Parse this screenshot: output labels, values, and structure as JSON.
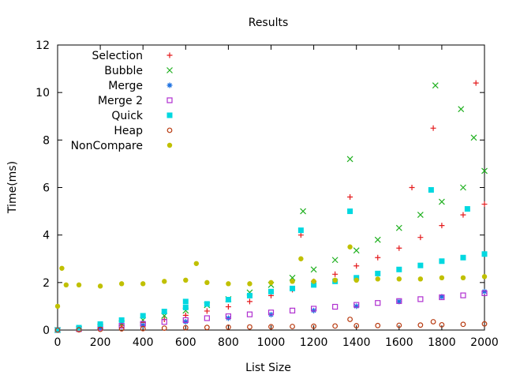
{
  "chart_data": {
    "type": "scatter",
    "title": "Results",
    "xlabel": "List Size",
    "ylabel": "Time(ms)",
    "xlim": [
      0,
      2000
    ],
    "ylim": [
      0,
      12
    ],
    "xticks": [
      0,
      200,
      400,
      600,
      800,
      1000,
      1200,
      1400,
      1600,
      1800,
      2000
    ],
    "yticks": [
      0,
      2,
      4,
      6,
      8,
      10,
      12
    ],
    "grid": false,
    "legend": "top-left",
    "series": [
      {
        "name": "Selection",
        "color": "#e41a1c",
        "marker": "plus",
        "x": [
          0,
          100,
          200,
          300,
          400,
          500,
          600,
          700,
          800,
          900,
          1000,
          1100,
          1200,
          1300,
          1400,
          1500,
          1600,
          1700,
          1800,
          1900,
          2000,
          1140,
          1370,
          1760,
          1960,
          1660
        ],
        "y": [
          0.0,
          0.03,
          0.12,
          0.2,
          0.32,
          0.45,
          0.62,
          0.8,
          0.98,
          1.2,
          1.45,
          1.7,
          2.05,
          2.35,
          2.7,
          3.05,
          3.45,
          3.9,
          4.4,
          4.85,
          5.3,
          4.0,
          5.6,
          8.5,
          10.4,
          6.0
        ]
      },
      {
        "name": "Bubble",
        "color": "#20b020",
        "marker": "cross",
        "x": [
          0,
          100,
          200,
          300,
          400,
          500,
          600,
          700,
          800,
          900,
          1000,
          1100,
          1200,
          1300,
          1400,
          1500,
          1600,
          1700,
          1800,
          1900,
          2000,
          1150,
          1370,
          1770,
          1890,
          1950
        ],
        "y": [
          0.0,
          0.05,
          0.15,
          0.28,
          0.42,
          0.6,
          0.82,
          1.05,
          1.3,
          1.58,
          1.9,
          2.2,
          2.55,
          2.95,
          3.35,
          3.8,
          4.3,
          4.85,
          5.4,
          6.0,
          6.7,
          5.0,
          7.2,
          10.3,
          9.3,
          8.1
        ]
      },
      {
        "name": "Merge",
        "color": "#1a6fe0",
        "marker": "star",
        "x": [
          0,
          200,
          400,
          600,
          800,
          1000,
          1200,
          1400,
          1600,
          1800,
          2000
        ],
        "y": [
          0.0,
          0.08,
          0.2,
          0.35,
          0.5,
          0.65,
          0.82,
          1.0,
          1.2,
          1.4,
          1.62
        ]
      },
      {
        "name": "Merge 2",
        "color": "#b030d0",
        "marker": "square-open",
        "x": [
          0,
          100,
          200,
          300,
          400,
          500,
          600,
          700,
          800,
          900,
          1000,
          1100,
          1200,
          1300,
          1400,
          1500,
          1600,
          1700,
          1800,
          1900,
          2000
        ],
        "y": [
          0.0,
          0.04,
          0.1,
          0.18,
          0.26,
          0.34,
          0.42,
          0.5,
          0.58,
          0.66,
          0.74,
          0.82,
          0.9,
          0.98,
          1.06,
          1.14,
          1.22,
          1.3,
          1.38,
          1.46,
          1.55
        ]
      },
      {
        "name": "Quick",
        "color": "#00d8e0",
        "marker": "square-filled",
        "x": [
          0,
          100,
          200,
          300,
          400,
          500,
          600,
          700,
          800,
          900,
          1000,
          1100,
          1200,
          1300,
          1400,
          1500,
          1600,
          1700,
          1800,
          1900,
          2000,
          1140,
          1370,
          1750,
          1920,
          600
        ],
        "y": [
          0.0,
          0.1,
          0.25,
          0.42,
          0.6,
          0.78,
          0.95,
          1.1,
          1.28,
          1.45,
          1.62,
          1.75,
          1.9,
          2.05,
          2.2,
          2.38,
          2.55,
          2.72,
          2.9,
          3.05,
          3.2,
          4.2,
          5.0,
          5.9,
          5.1,
          1.2
        ]
      },
      {
        "name": "Heap",
        "color": "#b83a10",
        "marker": "circle-open",
        "x": [
          0,
          100,
          200,
          300,
          400,
          500,
          600,
          700,
          800,
          900,
          1000,
          1100,
          1200,
          1300,
          1400,
          1500,
          1600,
          1700,
          1800,
          1900,
          2000,
          1370,
          1760
        ],
        "y": [
          0.0,
          0.01,
          0.03,
          0.05,
          0.06,
          0.08,
          0.1,
          0.11,
          0.12,
          0.13,
          0.14,
          0.15,
          0.16,
          0.17,
          0.18,
          0.19,
          0.2,
          0.21,
          0.22,
          0.24,
          0.26,
          0.45,
          0.35
        ]
      },
      {
        "name": "NonCompare",
        "color": "#c0c000",
        "marker": "circle-filled",
        "x": [
          0,
          20,
          40,
          100,
          200,
          300,
          400,
          500,
          600,
          650,
          700,
          800,
          900,
          1000,
          1100,
          1200,
          1300,
          1400,
          1500,
          1600,
          1700,
          1800,
          1900,
          2000,
          1140,
          1370
        ],
        "y": [
          1.0,
          2.6,
          1.9,
          1.9,
          1.85,
          1.95,
          1.95,
          2.05,
          2.1,
          2.8,
          2.0,
          1.95,
          1.95,
          2.0,
          2.05,
          2.05,
          2.1,
          2.1,
          2.15,
          2.15,
          2.15,
          2.2,
          2.2,
          2.25,
          3.0,
          3.5
        ]
      }
    ]
  }
}
